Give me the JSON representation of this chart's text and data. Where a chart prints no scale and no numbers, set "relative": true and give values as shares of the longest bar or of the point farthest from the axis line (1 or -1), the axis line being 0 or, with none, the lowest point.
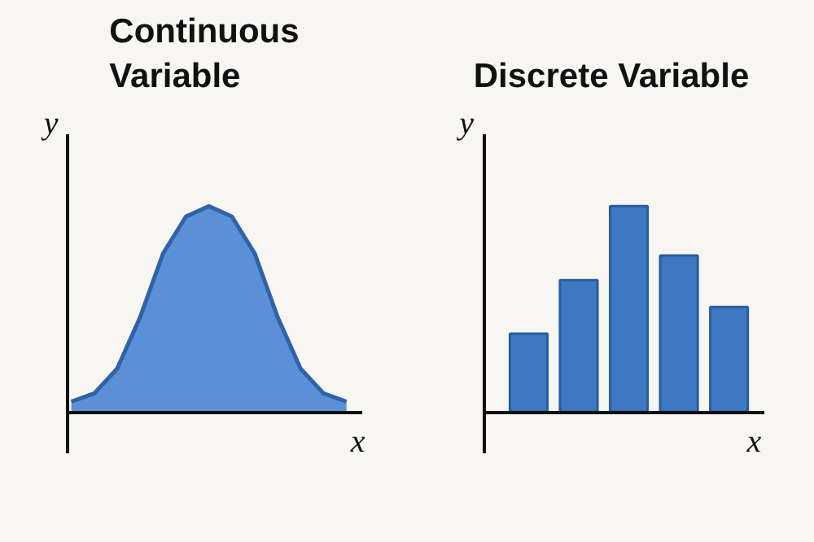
{
  "chart_data": [
    {
      "type": "area",
      "title": "Continuous\nVariable",
      "xlabel": "x",
      "ylabel": "y",
      "relative": true,
      "color": "#5b8fd6",
      "categories": [
        null,
        null,
        null,
        null,
        null,
        null,
        null,
        null,
        null,
        null,
        null,
        null,
        null
      ],
      "values": [
        0.05,
        0.09,
        0.21,
        0.46,
        0.77,
        0.95,
        1,
        0.95,
        0.77,
        0.46,
        0.21,
        0.09,
        0.05
      ]
    },
    {
      "type": "bar",
      "title": "Discrete Variable",
      "xlabel": "x",
      "ylabel": "y",
      "relative": true,
      "color": "#3e78c2",
      "categories": [
        null,
        null,
        null,
        null,
        null
      ],
      "values": [
        0.38,
        0.64,
        1,
        0.76,
        0.51
      ]
    }
  ]
}
